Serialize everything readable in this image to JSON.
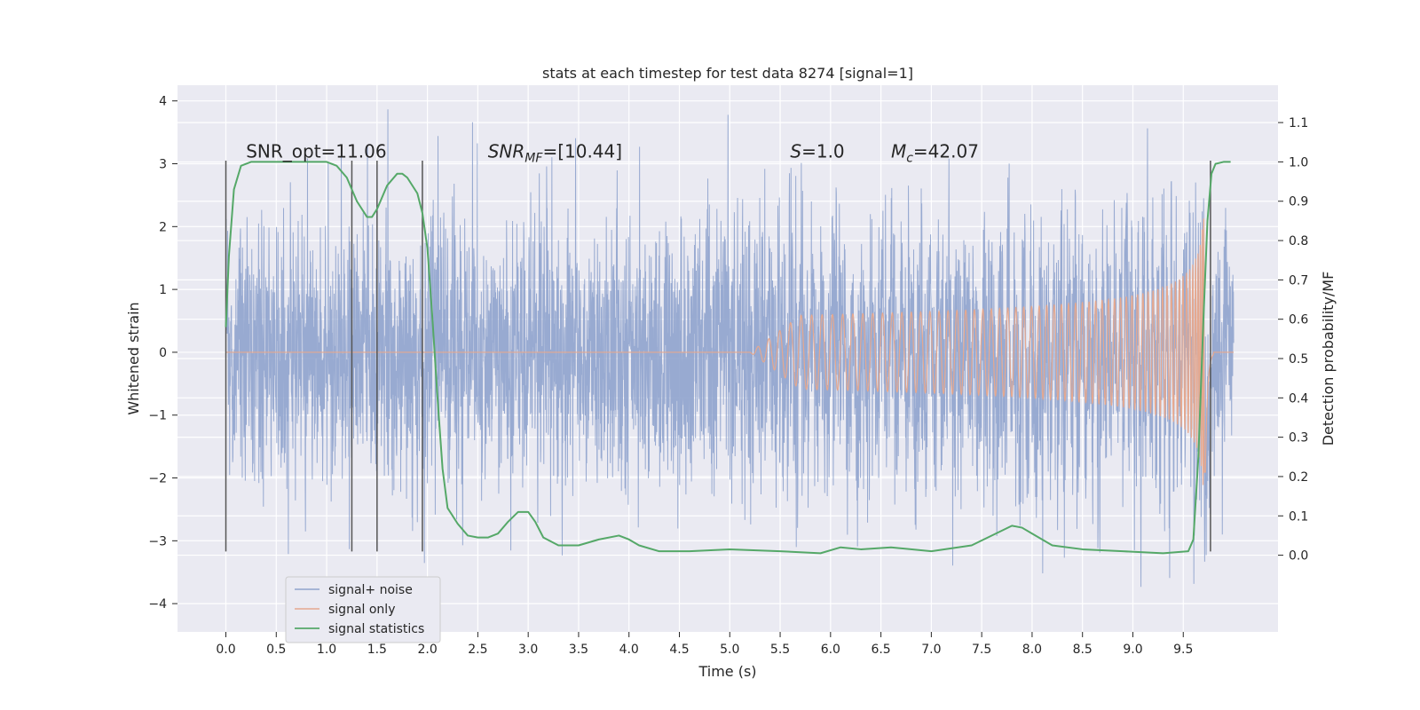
{
  "chart_data": {
    "type": "line",
    "title": "stats at each timestep for test data 8274 [signal=1]",
    "xlabel": "Time (s)",
    "ylabel_left": "Whitened strain",
    "ylabel_right": "Detection probability/MF",
    "xlim": [
      -0.48,
      10.44
    ],
    "ylim_left": [
      -4.45,
      4.25
    ],
    "ylim_right": [
      -0.195,
      1.195
    ],
    "x_ticks": [
      0,
      0.5,
      1,
      1.5,
      2,
      2.5,
      3,
      3.5,
      4,
      4.5,
      5,
      5.5,
      6,
      6.5,
      7,
      7.5,
      8,
      8.5,
      9,
      9.5
    ],
    "x_tick_labels": [
      "0.0",
      "0.5",
      "1.0",
      "1.5",
      "2.0",
      "2.5",
      "3.0",
      "3.5",
      "4.0",
      "4.5",
      "5.0",
      "5.5",
      "6.0",
      "6.5",
      "7.0",
      "7.5",
      "8.0",
      "8.5",
      "9.0",
      "9.5"
    ],
    "y_left_ticks": [
      4,
      3,
      2,
      1,
      0,
      -1,
      -2,
      -3,
      -4
    ],
    "y_left_tick_labels": [
      "4",
      "3",
      "2",
      "1",
      "0",
      "−1",
      "−2",
      "−3",
      "−4"
    ],
    "y_right_ticks": [
      1.1,
      1.0,
      0.9,
      0.8,
      0.7,
      0.6,
      0.5,
      0.4,
      0.3,
      0.2,
      0.1,
      0.0
    ],
    "y_right_tick_labels": [
      "1.1",
      "1.0",
      "0.9",
      "0.8",
      "0.7",
      "0.6",
      "0.5",
      "0.4",
      "0.3",
      "0.2",
      "0.1",
      "0.0"
    ],
    "grid": true,
    "legend": {
      "placement": "lower-left",
      "entries": [
        {
          "label": "signal+ noise",
          "color": "#8fa3cd"
        },
        {
          "label": "signal only",
          "color": "#e5a88f"
        },
        {
          "label": "signal statistics",
          "color": "#55a868"
        }
      ]
    },
    "annotations": [
      {
        "plain": "SNR_opt=11.06",
        "x": 0.2
      },
      {
        "base": "SNR",
        "sub": "MF",
        "rest": "=[10.44]",
        "x": 2.6
      },
      {
        "base": "S",
        "sub": "",
        "rest": "=1.0",
        "x": 5.6
      },
      {
        "base": "M",
        "sub": "c",
        "rest": "=42.07",
        "x": 6.6
      }
    ],
    "annotation_y": 3.1,
    "series": [
      {
        "name": "signal+ noise",
        "axis": "left",
        "color": "#8fa3cd",
        "description_points": {
          "t_start": 0,
          "t_end": 10.0,
          "amplitude_range": [
            -4.0,
            3.9
          ]
        }
      },
      {
        "name": "signal only",
        "axis": "left",
        "color": "#e5a88f",
        "chirp": {
          "t_start": 5.2,
          "t_merger": 9.72,
          "peak_amplitude": 2.8
        }
      },
      {
        "name": "signal statistics",
        "axis": "right",
        "color": "#55a868",
        "x": [
          0.0,
          0.03,
          0.08,
          0.15,
          0.25,
          0.4,
          0.6,
          0.8,
          1.0,
          1.1,
          1.2,
          1.3,
          1.4,
          1.45,
          1.5,
          1.6,
          1.7,
          1.75,
          1.8,
          1.9,
          1.95,
          2.0,
          2.05,
          2.1,
          2.15,
          2.2,
          2.3,
          2.4,
          2.5,
          2.6,
          2.7,
          2.8,
          2.9,
          3.0,
          3.07,
          3.15,
          3.3,
          3.5,
          3.7,
          3.9,
          4.0,
          4.1,
          4.3,
          4.6,
          5.0,
          5.5,
          5.9,
          6.1,
          6.3,
          6.6,
          7.0,
          7.4,
          7.8,
          7.9,
          8.0,
          8.2,
          8.5,
          8.9,
          9.3,
          9.55,
          9.6,
          9.65,
          9.7,
          9.74,
          9.78,
          9.82,
          9.9,
          9.97
        ],
        "y": [
          0.58,
          0.76,
          0.93,
          0.99,
          1.0,
          1.0,
          1.0,
          1.0,
          1.0,
          0.99,
          0.96,
          0.9,
          0.86,
          0.86,
          0.88,
          0.94,
          0.97,
          0.97,
          0.96,
          0.92,
          0.87,
          0.78,
          0.6,
          0.4,
          0.22,
          0.12,
          0.08,
          0.05,
          0.045,
          0.045,
          0.055,
          0.085,
          0.11,
          0.11,
          0.085,
          0.045,
          0.025,
          0.025,
          0.04,
          0.05,
          0.04,
          0.025,
          0.01,
          0.01,
          0.015,
          0.01,
          0.005,
          0.02,
          0.015,
          0.02,
          0.01,
          0.025,
          0.075,
          0.07,
          0.055,
          0.025,
          0.015,
          0.01,
          0.005,
          0.01,
          0.04,
          0.25,
          0.6,
          0.85,
          0.97,
          0.995,
          1.0,
          1.0
        ]
      }
    ],
    "vertical_lines": {
      "x": [
        0.0,
        1.25,
        1.5,
        1.95,
        9.77
      ],
      "y_range": [
        -3.17,
        3.05
      ]
    }
  }
}
